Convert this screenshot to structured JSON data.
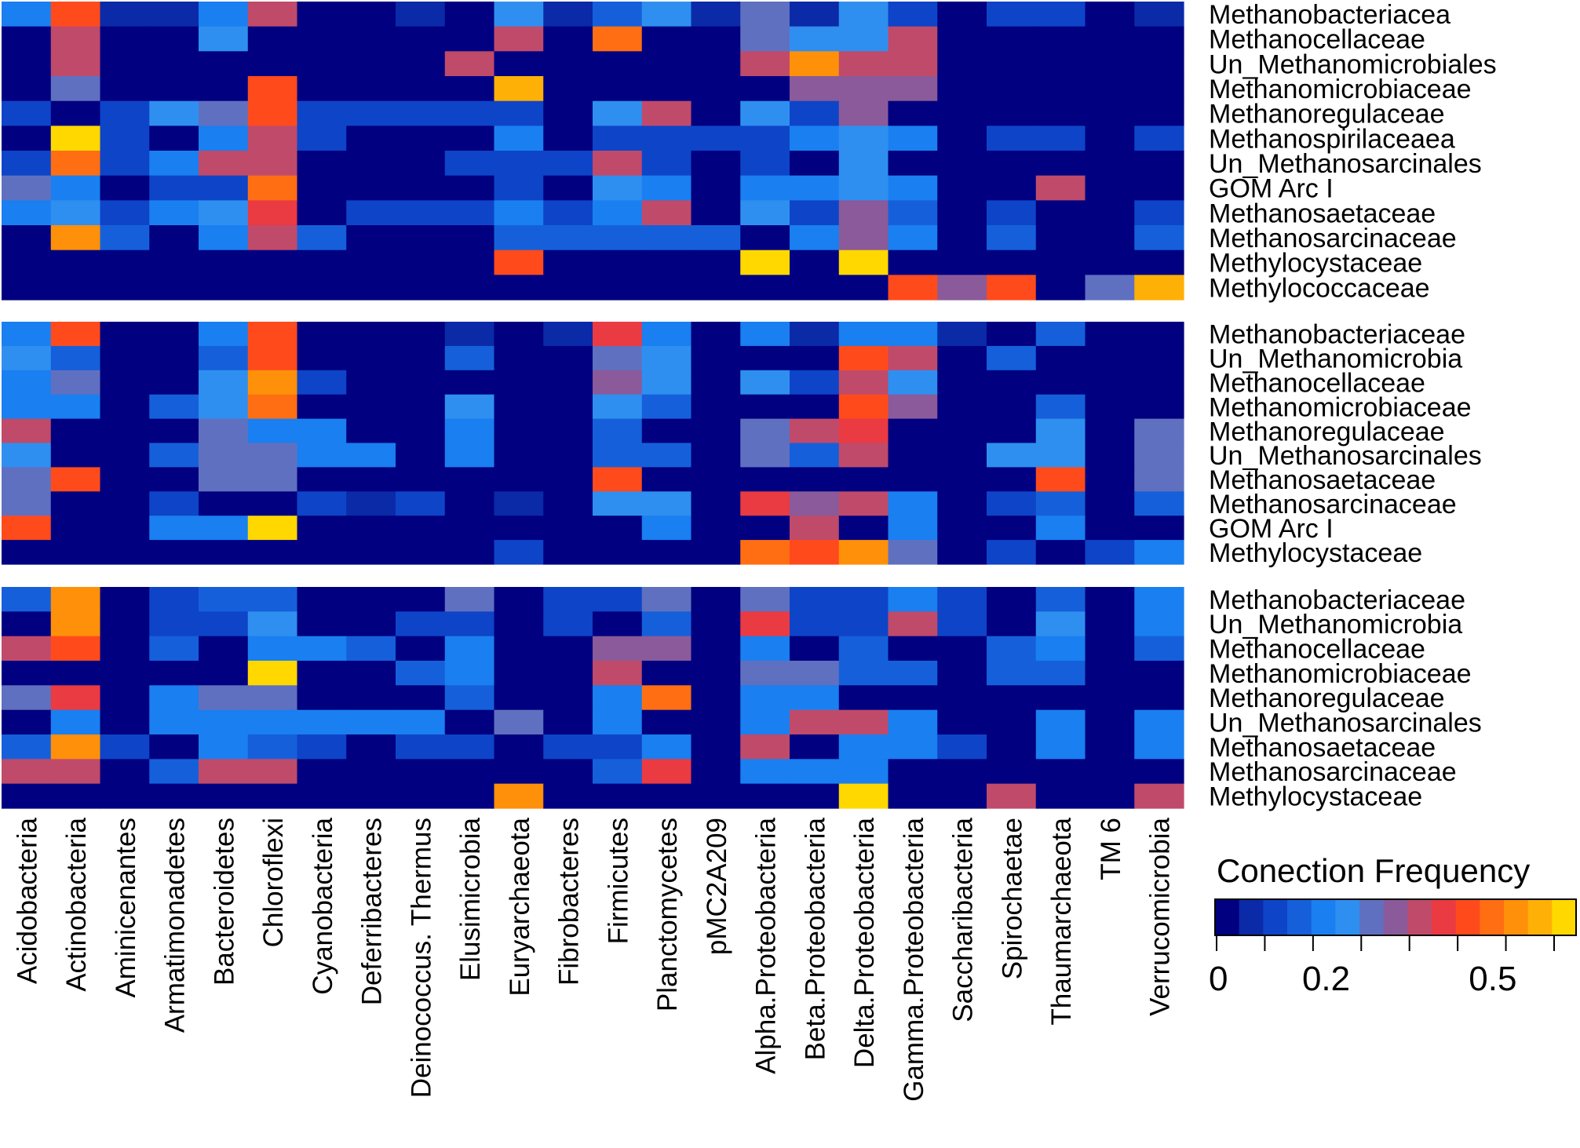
{
  "chart_data": {
    "type": "heatmap",
    "title": "",
    "xlabel": "",
    "ylabel": "",
    "columns": [
      "Acidobacteria",
      "Actinobacteria",
      "Aminicenantes",
      "Armatimonadetes",
      "Bacteroidetes",
      "Chloroflexi",
      "Cyanobacteria",
      "Deferribacteres",
      "Deinococcus. Thermus",
      "Elusimicrobia",
      "Euryarchaeota",
      "Fibrobacteres",
      "Firmicutes",
      "Planctomycetes",
      "pMC2A209",
      "Alpha.Proteobacteria",
      "Beta.Proteobacteria",
      "Delta.Proteobacteria",
      "Gamma.Proteobacteria",
      "Saccharibacteria",
      "Spirochaetae",
      "Thaumarchaeota",
      "TM 6",
      "Verrucomicrobia"
    ],
    "panels": [
      {
        "rows": [
          "Methanobacteriacea",
          "Methanocellaceae",
          "Un_Methanomicrobiales",
          "Methanomicrobiaceae",
          "Methanoregulaceae",
          "Methanospirilaceaea",
          "Un_Methanosarcinales",
          "GOM Arc I",
          "Methanosaetaceae",
          "Methanosarcinaceae",
          "Methylocystaceae",
          "Methylococcaceae"
        ],
        "values": [
          [
            0.18,
            0.44,
            0.07,
            0.07,
            0.18,
            0.38,
            0,
            0,
            0.07,
            0,
            0.24,
            0.07,
            0.16,
            0.24,
            0.07,
            0.26,
            0.07,
            0.24,
            0.12,
            0,
            0.12,
            0.12,
            0,
            0.07
          ],
          [
            0,
            0.36,
            0,
            0,
            0.24,
            0,
            0,
            0,
            0,
            0,
            0.36,
            0,
            0.48,
            0,
            0,
            0.26,
            0.24,
            0.24,
            0.36,
            0,
            0,
            0,
            0,
            0
          ],
          [
            0,
            0.36,
            0,
            0,
            0,
            0,
            0,
            0,
            0,
            0.38,
            0,
            0,
            0,
            0,
            0,
            0.38,
            0.56,
            0.38,
            0.36,
            0,
            0,
            0,
            0,
            0
          ],
          [
            0,
            0.3,
            0,
            0,
            0,
            0.44,
            0,
            0,
            0,
            0,
            0.58,
            0,
            0,
            0,
            0,
            0,
            0.32,
            0.32,
            0.32,
            0,
            0,
            0,
            0,
            0
          ],
          [
            0.12,
            0,
            0.12,
            0.24,
            0.26,
            0.44,
            0.12,
            0.12,
            0.12,
            0.12,
            0.12,
            0,
            0.24,
            0.38,
            0,
            0.24,
            0.12,
            0.32,
            0,
            0,
            0,
            0,
            0,
            0
          ],
          [
            0,
            0.62,
            0.12,
            0,
            0.18,
            0.38,
            0.12,
            0,
            0,
            0,
            0.18,
            0,
            0.12,
            0.12,
            0.12,
            0.12,
            0.18,
            0.24,
            0.18,
            0,
            0.12,
            0.12,
            0,
            0.12
          ],
          [
            0.12,
            0.48,
            0.12,
            0.18,
            0.38,
            0.38,
            0,
            0,
            0,
            0.12,
            0.12,
            0.12,
            0.38,
            0.12,
            0,
            0.12,
            0,
            0.24,
            0,
            0,
            0,
            0,
            0,
            0
          ],
          [
            0.3,
            0.18,
            0,
            0.12,
            0.12,
            0.48,
            0,
            0,
            0,
            0,
            0.12,
            0,
            0.24,
            0.18,
            0,
            0.18,
            0.18,
            0.24,
            0.18,
            0,
            0,
            0.38,
            0,
            0
          ],
          [
            0.18,
            0.24,
            0.12,
            0.18,
            0.24,
            0.42,
            0,
            0.12,
            0.12,
            0.12,
            0.18,
            0.12,
            0.18,
            0.38,
            0,
            0.24,
            0.12,
            0.32,
            0.16,
            0,
            0.12,
            0,
            0,
            0.12
          ],
          [
            0,
            0.54,
            0.16,
            0,
            0.18,
            0.38,
            0.16,
            0,
            0,
            0,
            0.16,
            0.16,
            0.16,
            0.16,
            0.16,
            0,
            0.18,
            0.32,
            0.18,
            0,
            0.16,
            0,
            0,
            0.16
          ],
          [
            0,
            0,
            0,
            0,
            0,
            0,
            0,
            0,
            0,
            0,
            0.44,
            0,
            0,
            0,
            0,
            0.64,
            0,
            0.64,
            0,
            0,
            0,
            0,
            0,
            0
          ],
          [
            0,
            0,
            0,
            0,
            0,
            0,
            0,
            0,
            0,
            0,
            0,
            0,
            0,
            0,
            0,
            0,
            0,
            0,
            0.44,
            0.32,
            0.46,
            0,
            0.3,
            0.58
          ]
        ]
      },
      {
        "rows": [
          "Methanobacteriaceae",
          "Un_Methanomicrobia",
          "Methanocellaceae",
          "Methanomicrobiaceae",
          "Methanoregulaceae",
          "Un_Methanosarcinales",
          "Methanosaetaceae",
          "Methanosarcinaceae",
          "GOM Arc I",
          "Methylocystaceae"
        ],
        "values": [
          [
            0.18,
            0.46,
            0,
            0,
            0.18,
            0.46,
            0,
            0,
            0,
            0.07,
            0,
            0.07,
            0.42,
            0.18,
            0,
            0.18,
            0.07,
            0.18,
            0.18,
            0.07,
            0,
            0.16,
            0,
            0
          ],
          [
            0.24,
            0.16,
            0,
            0,
            0.16,
            0.46,
            0,
            0,
            0,
            0.16,
            0,
            0,
            0.26,
            0.24,
            0,
            0,
            0,
            0.46,
            0.36,
            0,
            0.16,
            0,
            0,
            0
          ],
          [
            0.18,
            0.3,
            0,
            0,
            0.24,
            0.52,
            0.12,
            0,
            0,
            0,
            0,
            0,
            0.32,
            0.24,
            0,
            0.24,
            0.12,
            0.36,
            0.24,
            0,
            0,
            0,
            0,
            0
          ],
          [
            0.18,
            0.18,
            0,
            0.16,
            0.24,
            0.5,
            0,
            0,
            0,
            0.24,
            0,
            0,
            0.24,
            0.16,
            0,
            0,
            0,
            0.46,
            0.32,
            0,
            0,
            0.16,
            0,
            0
          ],
          [
            0.36,
            0,
            0,
            0,
            0.3,
            0.18,
            0.18,
            0,
            0,
            0.18,
            0,
            0,
            0.16,
            0,
            0,
            0.3,
            0.38,
            0.42,
            0,
            0,
            0,
            0.24,
            0,
            0.3
          ],
          [
            0.24,
            0,
            0,
            0.16,
            0.3,
            0.3,
            0.18,
            0.18,
            0,
            0.18,
            0,
            0,
            0.16,
            0.16,
            0,
            0.3,
            0.16,
            0.36,
            0,
            0,
            0.24,
            0.24,
            0,
            0.3
          ],
          [
            0.3,
            0.46,
            0,
            0,
            0.3,
            0.3,
            0,
            0,
            0,
            0,
            0,
            0,
            0.46,
            0,
            0,
            0,
            0,
            0,
            0,
            0,
            0,
            0.46,
            0,
            0.3
          ],
          [
            0.3,
            0,
            0,
            0.12,
            0,
            0,
            0.12,
            0.07,
            0.12,
            0,
            0.07,
            0,
            0.24,
            0.24,
            0,
            0.42,
            0.32,
            0.38,
            0.18,
            0,
            0.12,
            0.16,
            0,
            0.16
          ],
          [
            0.46,
            0,
            0,
            0.18,
            0.18,
            0.62,
            0,
            0,
            0,
            0,
            0,
            0,
            0,
            0.18,
            0,
            0,
            0.36,
            0,
            0.18,
            0,
            0,
            0.18,
            0,
            0
          ],
          [
            0,
            0,
            0,
            0,
            0,
            0,
            0,
            0,
            0,
            0,
            0.12,
            0,
            0,
            0,
            0,
            0.5,
            0.46,
            0.52,
            0.3,
            0,
            0.12,
            0,
            0.12,
            0.18
          ]
        ]
      },
      {
        "rows": [
          "Methanobacteriaceae",
          "Un_Methanomicrobia",
          "Methanocellaceae",
          "Methanomicrobiaceae",
          "Methanoregulaceae",
          "Un_Methanosarcinales",
          "Methanosaetaceae",
          "Methanosarcinaceae",
          "Methylocystaceae"
        ],
        "values": [
          [
            0.16,
            0.56,
            0,
            0.12,
            0.16,
            0.16,
            0,
            0,
            0,
            0.3,
            0,
            0.12,
            0.12,
            0.3,
            0,
            0.3,
            0.12,
            0.12,
            0.18,
            0.12,
            0,
            0.16,
            0,
            0.18
          ],
          [
            0,
            0.56,
            0,
            0.12,
            0.12,
            0.24,
            0,
            0,
            0.12,
            0.12,
            0,
            0.12,
            0,
            0.16,
            0,
            0.42,
            0.12,
            0.12,
            0.36,
            0.12,
            0,
            0.24,
            0,
            0.18
          ],
          [
            0.36,
            0.46,
            0,
            0.16,
            0,
            0.18,
            0.18,
            0.16,
            0,
            0.18,
            0,
            0,
            0.32,
            0.32,
            0,
            0.18,
            0,
            0.16,
            0,
            0,
            0.16,
            0.18,
            0,
            0.16
          ],
          [
            0,
            0,
            0,
            0,
            0,
            0.64,
            0,
            0,
            0.16,
            0.18,
            0,
            0,
            0.36,
            0,
            0,
            0.3,
            0.3,
            0.16,
            0.16,
            0,
            0.16,
            0.16,
            0,
            0
          ],
          [
            0.3,
            0.4,
            0,
            0.18,
            0.3,
            0.3,
            0,
            0,
            0,
            0.16,
            0,
            0,
            0.18,
            0.48,
            0,
            0.18,
            0.18,
            0,
            0,
            0,
            0,
            0,
            0,
            0
          ],
          [
            0,
            0.18,
            0,
            0.18,
            0.18,
            0.18,
            0.18,
            0.18,
            0.18,
            0,
            0.3,
            0,
            0.18,
            0,
            0,
            0.18,
            0.36,
            0.36,
            0.18,
            0,
            0,
            0.18,
            0,
            0.18
          ],
          [
            0.16,
            0.54,
            0.12,
            0,
            0.18,
            0.16,
            0.12,
            0,
            0.12,
            0.12,
            0,
            0.12,
            0.12,
            0.18,
            0,
            0.36,
            0,
            0.18,
            0.18,
            0.12,
            0,
            0.18,
            0,
            0.18
          ],
          [
            0.36,
            0.36,
            0,
            0.16,
            0.36,
            0.36,
            0,
            0,
            0,
            0,
            0,
            0,
            0.16,
            0.42,
            0,
            0.18,
            0.18,
            0.18,
            0,
            0,
            0,
            0,
            0,
            0
          ],
          [
            0,
            0,
            0,
            0,
            0,
            0,
            0,
            0,
            0,
            0,
            0.54,
            0,
            0,
            0,
            0,
            0,
            0,
            0.64,
            0,
            0,
            0.36,
            0,
            0,
            0.36
          ]
        ]
      }
    ],
    "legend": {
      "title": "Conection Frequency",
      "ticks": [
        "0",
        "0.2",
        "0.5"
      ],
      "tick_values": [
        0,
        0.2,
        0.5
      ],
      "min": 0,
      "max": 0.65,
      "colors": [
        "#000080",
        "#0a2aa8",
        "#0e44c8",
        "#1560da",
        "#1a7ff0",
        "#2e8ff0",
        "#6070c0",
        "#8a5a9a",
        "#c04a6a",
        "#ea3a42",
        "#ff4a1c",
        "#ff6e12",
        "#ff900a",
        "#ffb006",
        "#ffd800"
      ]
    }
  }
}
